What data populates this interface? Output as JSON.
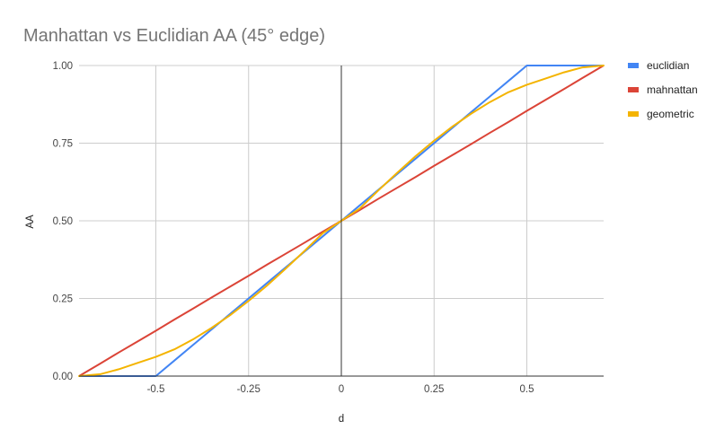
{
  "chart_data": {
    "type": "line",
    "title": "Manhattan vs Euclidian AA (45° edge)",
    "xlabel": "d",
    "ylabel": "AA",
    "xlim": [
      -0.707,
      0.707
    ],
    "ylim": [
      0,
      1
    ],
    "x_ticks": [
      -0.5,
      -0.25,
      0,
      0.25,
      0.5
    ],
    "x_tick_labels": [
      "-0.5",
      "-0.25",
      "0",
      "0.25",
      "0.5"
    ],
    "y_ticks": [
      0,
      0.25,
      0.5,
      0.75,
      1
    ],
    "y_tick_labels": [
      "0.00",
      "0.25",
      "0.50",
      "0.75",
      "1.00"
    ],
    "grid": true,
    "legend_position": "right",
    "x": [
      -0.707,
      -0.65,
      -0.6,
      -0.55,
      -0.5,
      -0.45,
      -0.4,
      -0.35,
      -0.3,
      -0.25,
      -0.2,
      -0.15,
      -0.1,
      -0.05,
      0,
      0.05,
      0.1,
      0.15,
      0.2,
      0.25,
      0.3,
      0.35,
      0.4,
      0.45,
      0.5,
      0.55,
      0.6,
      0.65,
      0.707
    ],
    "series": [
      {
        "name": "euclidian",
        "color": "#4285f4",
        "values": [
          0,
          0,
          0,
          0,
          0,
          0.05,
          0.1,
          0.15,
          0.2,
          0.25,
          0.3,
          0.35,
          0.4,
          0.45,
          0.5,
          0.55,
          0.6,
          0.65,
          0.7,
          0.75,
          0.8,
          0.85,
          0.9,
          0.95,
          1,
          1,
          1,
          1,
          1
        ]
      },
      {
        "name": "mahnattan",
        "color": "#db4437",
        "values": [
          0,
          0.04,
          0.076,
          0.111,
          0.146,
          0.182,
          0.217,
          0.253,
          0.288,
          0.323,
          0.359,
          0.394,
          0.429,
          0.465,
          0.5,
          0.535,
          0.571,
          0.606,
          0.641,
          0.677,
          0.712,
          0.747,
          0.783,
          0.818,
          0.854,
          0.889,
          0.924,
          0.96,
          1
        ]
      },
      {
        "name": "geometric",
        "color": "#f4b400",
        "values": [
          0,
          0.006,
          0.022,
          0.042,
          0.062,
          0.086,
          0.118,
          0.155,
          0.196,
          0.242,
          0.292,
          0.346,
          0.402,
          0.46,
          0.5,
          0.54,
          0.598,
          0.654,
          0.708,
          0.758,
          0.804,
          0.845,
          0.882,
          0.914,
          0.938,
          0.958,
          0.978,
          0.994,
          1
        ]
      }
    ]
  }
}
